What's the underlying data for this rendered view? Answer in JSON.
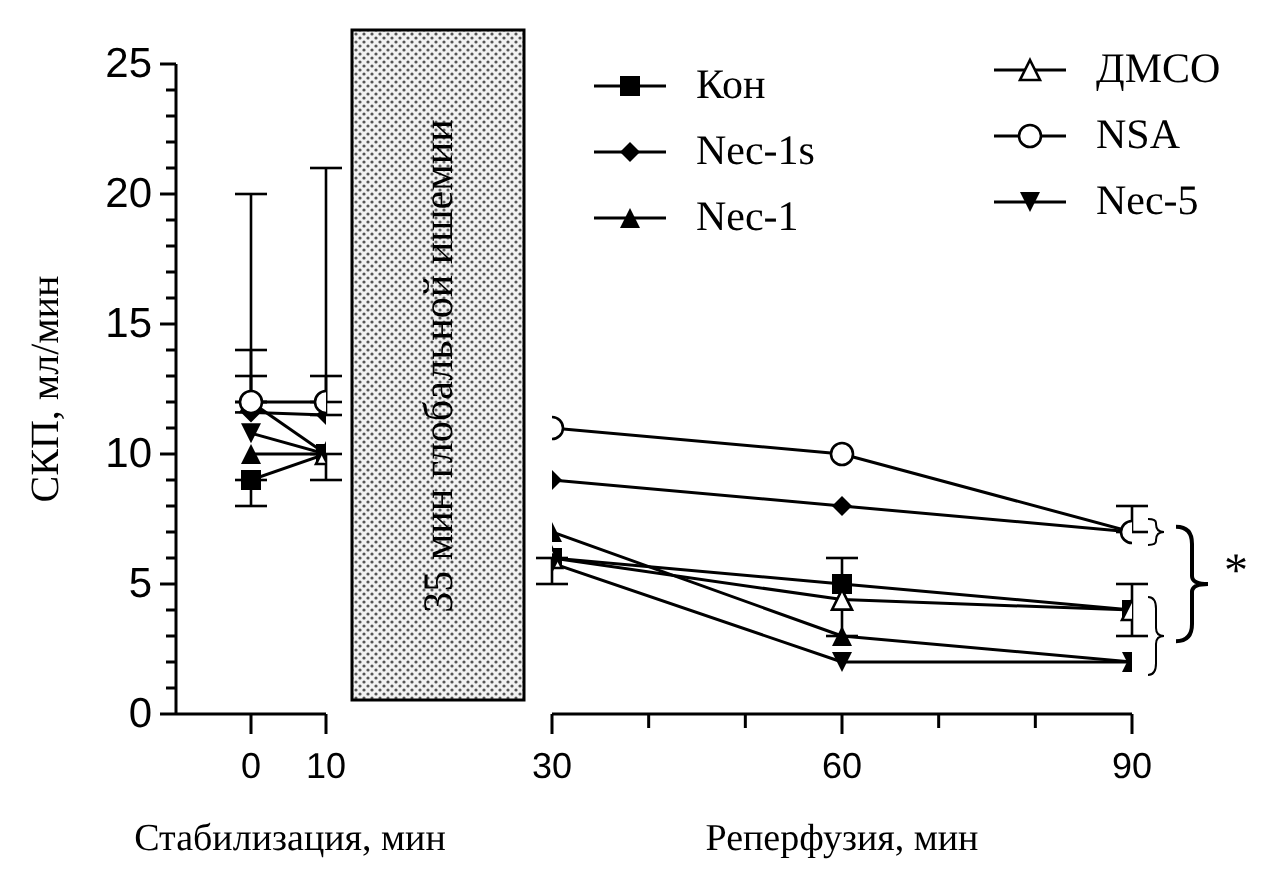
{
  "chart_data": [
    {
      "type": "line",
      "ylabel": "СКП, мл/мин",
      "xlabel": "Стабилизация, мин",
      "x": [
        0,
        10
      ],
      "xlim": [
        -10,
        10
      ],
      "xticks": [
        0,
        10
      ],
      "ylim": [
        0,
        25
      ],
      "yticks": [
        0,
        {
          "value": 1,
          "label": null
        },
        {
          "value": 2,
          "label": null
        },
        {
          "value": 3,
          "label": null
        },
        {
          "value": 4,
          "label": null
        },
        5,
        {
          "value": 6,
          "label": null
        },
        {
          "value": 7,
          "label": null
        },
        {
          "value": 8,
          "label": null
        },
        {
          "value": 9,
          "label": null
        },
        10,
        {
          "value": 11,
          "label": null
        },
        {
          "value": 12,
          "label": null
        },
        {
          "value": 13,
          "label": null
        },
        {
          "value": 14,
          "label": null
        },
        15,
        {
          "value": 16,
          "label": null
        },
        {
          "value": 17,
          "label": null
        },
        {
          "value": 18,
          "label": null
        },
        {
          "value": 19,
          "label": null
        },
        20,
        {
          "value": 21,
          "label": null
        },
        {
          "value": 22,
          "label": null
        },
        {
          "value": 23,
          "label": null
        },
        {
          "value": 24,
          "label": null
        },
        25
      ],
      "line_style": "solid",
      "annotations": [
        "35 мин глобальной ишемии"
      ],
      "series": [
        {
          "color": "#000000",
          "marker": "square",
          "values": [
            9,
            10
          ],
          "errors": [
            [
              8,
              9
            ],
            [
              9,
              10
            ]
          ]
        },
        {
          "color": "#000000",
          "marker": "diamond",
          "values": [
            11.6,
            11.5
          ],
          "errors": [
            [
              11.6,
              14
            ],
            [
              11.5,
              13
            ]
          ]
        },
        {
          "color": "#000000",
          "marker": "triangle",
          "values": [
            10,
            10
          ]
        },
        {
          "color": "#000000",
          "marker": "triangle-open",
          "values": [
            12,
            10
          ],
          "errors": [
            [
              12,
              13
            ],
            null
          ]
        },
        {
          "color": "#000000",
          "marker": "circle-open",
          "values": [
            12,
            12
          ],
          "errors": [
            [
              12,
              20
            ],
            [
              12,
              21
            ]
          ]
        },
        {
          "color": "#000000",
          "marker": "triangle-down",
          "values": [
            10.8,
            10
          ]
        }
      ]
    },
    {
      "type": "line",
      "xlabel": "Реперфузия, мин",
      "x": [
        30,
        60,
        90
      ],
      "xlim": [
        30,
        90
      ],
      "xticks": [
        30,
        {
          "value": 40,
          "label": null
        },
        {
          "value": 50,
          "label": null
        },
        60,
        {
          "value": 70,
          "label": null
        },
        {
          "value": 80,
          "label": null
        },
        90
      ],
      "ylim": [
        0,
        25
      ],
      "tick_labels": "x",
      "legend": "top right",
      "line_style": "solid",
      "annotations": [
        "*"
      ],
      "series": [
        {
          "name": "Кон",
          "color": "#000000",
          "marker": "square",
          "values": [
            6,
            5,
            4
          ],
          "errors": [
            [
              5,
              6
            ],
            null,
            [
              3,
              5
            ]
          ]
        },
        {
          "name": "Nec-1s",
          "color": "#000000",
          "marker": "diamond",
          "values": [
            9,
            8,
            7
          ]
        },
        {
          "name": "Nec-1",
          "color": "#000000",
          "marker": "triangle",
          "values": [
            7,
            3,
            2
          ],
          "errors": [
            null,
            [
              3,
              6
            ],
            null
          ]
        },
        {
          "name": "ДМСО",
          "color": "#000000",
          "marker": "triangle-open",
          "values": [
            6,
            4.4,
            4
          ]
        },
        {
          "name": "NSA",
          "color": "#000000",
          "marker": "circle-open",
          "values": [
            11,
            10,
            7
          ],
          "errors": [
            null,
            null,
            [
              7,
              8
            ]
          ]
        },
        {
          "name": "Nec-5",
          "color": "#000000",
          "marker": "triangle-down",
          "values": [
            5.8,
            2,
            2
          ]
        }
      ]
    }
  ]
}
